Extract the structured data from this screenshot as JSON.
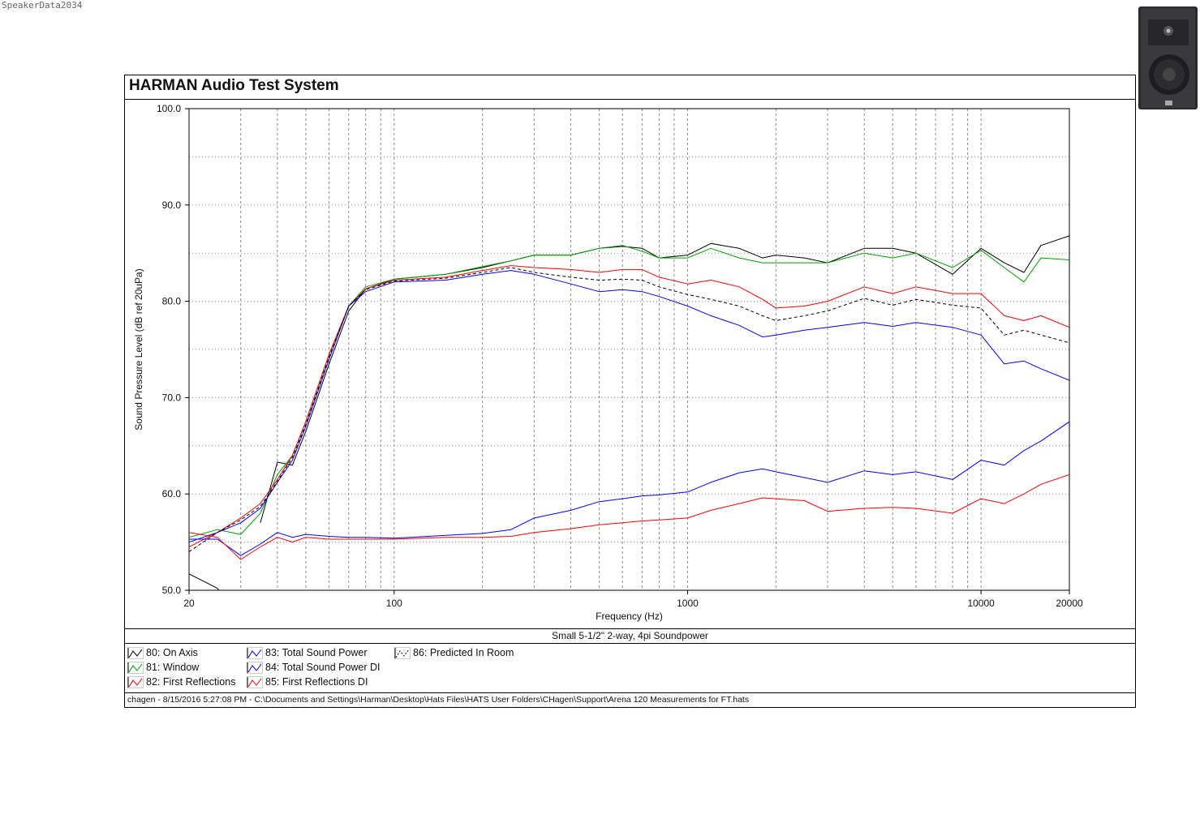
{
  "watermark": "SpeakerData2034",
  "header": {
    "title": "HARMAN Audio Test System"
  },
  "caption": "Small 5-1/2\" 2-way, 4pi Soundpower",
  "footer": "chagen - 8/15/2016 5:27:08 PM - C:\\Documents and Settings\\Harman\\Desktop\\Hats Files\\HATS User Folders\\CHagen\\Support\\Arena 120 Measurements for FT.hats",
  "legend": [
    {
      "label": "80: On Axis",
      "color": "#000000",
      "dashed": false
    },
    {
      "label": "81: Window",
      "color": "#00a000",
      "dashed": false
    },
    {
      "label": "82: First Reflections",
      "color": "#ff0000",
      "dashed": false
    },
    {
      "label": "83: Total Sound Power",
      "color": "#0000ff",
      "dashed": false
    },
    {
      "label": "84: Total Sound Power DI",
      "color": "#0000ff",
      "dashed": false
    },
    {
      "label": "85: First Reflections DI",
      "color": "#ff0000",
      "dashed": false
    },
    {
      "label": "86: Predicted In Room",
      "color": "#000000",
      "dashed": true
    }
  ],
  "chart_data": {
    "type": "line",
    "xlabel": "Frequency (Hz)",
    "ylabel": "Sound Pressure Level (dB ref 20uPa)",
    "xscale": "log",
    "xlim": [
      20,
      20000
    ],
    "ylim": [
      50,
      100
    ],
    "grid": true,
    "xticks": [
      "20",
      "100",
      "1000",
      "10000",
      "20000"
    ],
    "xtick_values": [
      20,
      100,
      1000,
      10000,
      20000
    ],
    "yticks": [
      "50.0",
      "60.0",
      "70.0",
      "80.0",
      "90.0",
      "100.0"
    ],
    "ytick_values": [
      50,
      60,
      70,
      80,
      90,
      100
    ],
    "x": [
      20,
      25,
      30,
      35,
      40,
      45,
      50,
      60,
      70,
      80,
      100,
      150,
      200,
      250,
      300,
      400,
      500,
      600,
      700,
      800,
      1000,
      1200,
      1500,
      1800,
      2000,
      2500,
      3000,
      4000,
      5000,
      6000,
      8000,
      10000,
      12000,
      14000,
      16000,
      20000
    ],
    "series": [
      {
        "name": "80: On Axis",
        "color": "#000000",
        "dashed": false,
        "values": [
          51.7,
          50.2,
          null,
          57.0,
          63.3,
          63.0,
          66.5,
          73.5,
          79.0,
          81.3,
          82.3,
          82.8,
          83.5,
          84.2,
          84.8,
          84.8,
          85.5,
          85.7,
          85.5,
          84.5,
          84.8,
          86.0,
          85.5,
          84.5,
          84.8,
          84.5,
          84.0,
          85.5,
          85.5,
          85.0,
          82.8,
          85.5,
          84.0,
          83.0,
          85.8,
          86.8
        ]
      },
      {
        "name": "81: Window",
        "color": "#00a000",
        "dashed": false,
        "values": [
          55.5,
          56.3,
          55.8,
          58.0,
          62.0,
          64.0,
          67.5,
          74.5,
          79.5,
          81.5,
          82.3,
          82.8,
          83.6,
          84.2,
          84.8,
          84.8,
          85.5,
          85.8,
          85.2,
          84.5,
          84.5,
          85.5,
          84.5,
          84.0,
          84.0,
          84.0,
          84.0,
          85.0,
          84.5,
          85.0,
          83.5,
          85.3,
          83.5,
          82.0,
          84.5,
          84.3
        ]
      },
      {
        "name": "82: First Reflections",
        "color": "#ff0000",
        "dashed": false,
        "values": [
          54.5,
          56.0,
          57.5,
          59.0,
          61.5,
          64.0,
          67.5,
          74.5,
          79.5,
          81.3,
          82.2,
          82.5,
          83.2,
          83.7,
          83.5,
          83.3,
          83.0,
          83.3,
          83.3,
          82.5,
          81.8,
          82.2,
          81.5,
          80.2,
          79.3,
          79.5,
          80.0,
          81.5,
          80.8,
          81.5,
          80.8,
          80.8,
          78.5,
          78.0,
          78.5,
          77.3
        ]
      },
      {
        "name": "83: Total Sound Power",
        "color": "#0000ff",
        "dashed": false,
        "values": [
          55.0,
          56.0,
          57.0,
          58.5,
          61.2,
          63.5,
          67.0,
          74.0,
          79.5,
          81.0,
          82.0,
          82.2,
          82.8,
          83.2,
          82.8,
          81.8,
          81.0,
          81.2,
          81.0,
          80.5,
          79.5,
          78.5,
          77.5,
          76.3,
          76.5,
          77.0,
          77.3,
          77.8,
          77.4,
          77.8,
          77.3,
          76.5,
          73.5,
          73.8,
          73.0,
          71.8
        ]
      },
      {
        "name": "84: Total Sound Power DI",
        "color": "#0000ff",
        "dashed": false,
        "values": [
          55.3,
          55.3,
          53.6,
          54.8,
          56.0,
          55.5,
          55.8,
          55.6,
          55.5,
          55.5,
          55.4,
          55.7,
          55.9,
          56.3,
          57.5,
          58.3,
          59.2,
          59.5,
          59.8,
          59.9,
          60.2,
          61.2,
          62.2,
          62.6,
          62.3,
          61.7,
          61.2,
          62.4,
          62.0,
          62.3,
          61.5,
          63.5,
          63.0,
          64.5,
          65.5,
          67.5
        ]
      },
      {
        "name": "85: First Reflections DI",
        "color": "#ff0000",
        "dashed": false,
        "values": [
          56.0,
          55.5,
          53.2,
          54.5,
          55.5,
          55.0,
          55.5,
          55.3,
          55.3,
          55.3,
          55.3,
          55.5,
          55.5,
          55.6,
          56.0,
          56.4,
          56.8,
          57.0,
          57.2,
          57.3,
          57.5,
          58.3,
          59.0,
          59.6,
          59.5,
          59.3,
          58.2,
          58.5,
          58.6,
          58.5,
          58.0,
          59.5,
          59.0,
          60.0,
          61.0,
          62.0
        ]
      },
      {
        "name": "86: Predicted In Room",
        "color": "#000000",
        "dashed": true,
        "values": [
          54.0,
          56.0,
          57.3,
          58.7,
          61.3,
          63.8,
          67.2,
          74.2,
          79.5,
          81.2,
          82.1,
          82.4,
          83.0,
          83.5,
          83.0,
          82.5,
          82.2,
          82.3,
          82.2,
          81.5,
          80.7,
          80.2,
          79.5,
          78.5,
          78.0,
          78.5,
          79.0,
          80.3,
          79.6,
          80.2,
          79.6,
          79.3,
          76.5,
          77.0,
          76.5,
          75.7
        ]
      }
    ]
  }
}
